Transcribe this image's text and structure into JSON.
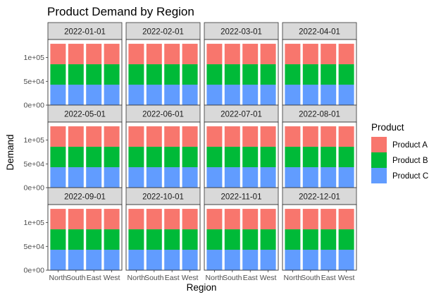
{
  "chart_data": {
    "type": "bar",
    "stacked": true,
    "faceted": true,
    "title": "Product Demand by Region",
    "xlabel": "Region",
    "ylabel": "Demand",
    "categories": [
      "North",
      "South",
      "East",
      "West"
    ],
    "category_labels_shown": [
      "North",
      "South",
      "East",
      "West"
    ],
    "facets": [
      "2022-01-01",
      "2022-02-01",
      "2022-03-01",
      "2022-04-01",
      "2022-05-01",
      "2022-06-01",
      "2022-07-01",
      "2022-08-01",
      "2022-09-01",
      "2022-10-01",
      "2022-11-01",
      "2022-12-01"
    ],
    "y_ticks": [
      {
        "value": 0,
        "label": "0e+00"
      },
      {
        "value": 50000,
        "label": "5e+04"
      },
      {
        "value": 100000,
        "label": "1e+05"
      }
    ],
    "ylim": [
      0,
      138000
    ],
    "series": [
      {
        "name": "Product C",
        "color": "#619CFF",
        "values": [
          43000,
          43000,
          43000,
          43000
        ]
      },
      {
        "name": "Product B",
        "color": "#00BA38",
        "values": [
          43000,
          43000,
          43000,
          43000
        ]
      },
      {
        "name": "Product A",
        "color": "#F8766D",
        "values": [
          43000,
          43000,
          43000,
          43000
        ]
      }
    ],
    "legend": {
      "title": "Product",
      "placement": "right",
      "entries": [
        {
          "label": "Product A",
          "color": "#F8766D"
        },
        {
          "label": "Product B",
          "color": "#00BA38"
        },
        {
          "label": "Product C",
          "color": "#619CFF"
        }
      ]
    },
    "grid": false
  }
}
